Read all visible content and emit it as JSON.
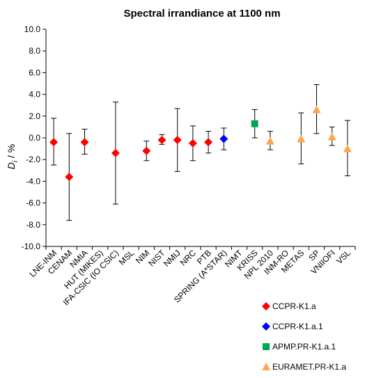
{
  "chart_data": {
    "type": "scatter",
    "title": "Spectral irrandiance at 1100 nm",
    "ylabel": "D_i / %",
    "ylabel_main": "D",
    "ylabel_sub": "i",
    "ylabel_rest": " / %",
    "xlabel": "",
    "ylim": [
      -10,
      10
    ],
    "yticks": [
      "10.0",
      "8.0",
      "6.0",
      "4.0",
      "2.0",
      "0.0",
      "-2.0",
      "-4.0",
      "-6.0",
      "-8.0",
      "-10.0"
    ],
    "ytick_values": [
      10,
      8,
      6,
      4,
      2,
      0,
      -2,
      -4,
      -6,
      -8,
      -10
    ],
    "grid": false,
    "legend_position": "bottom-right",
    "categories": [
      "LNE-INM",
      "CENAM",
      "NMIA",
      "HUT (MIKES)",
      "IFA-CSIC (IO CSIC)",
      "MSL",
      "NIM",
      "NIST",
      "NMIJ",
      "NRC",
      "PTB",
      "SPRING (A*STAR)",
      "NIMT",
      "KRISS",
      "NPL 2010",
      "INM-RO",
      "METAS",
      "SP",
      "VNIIOFI",
      "VSL"
    ],
    "series": [
      {
        "name": "CCPR-K1.a",
        "color": "#ff0000",
        "marker": "diamond",
        "points": [
          {
            "category": "LNE-INM",
            "y": -0.4,
            "err_low": -2.5,
            "err_high": 1.8
          },
          {
            "category": "CENAM",
            "y": -3.6,
            "err_low": -7.6,
            "err_high": 0.4
          },
          {
            "category": "NMIA",
            "y": -0.4,
            "err_low": -1.5,
            "err_high": 0.8
          },
          {
            "category": "IFA-CSIC (IO CSIC)",
            "y": -1.4,
            "err_low": -6.1,
            "err_high": 3.3
          },
          {
            "category": "NIM",
            "y": -1.2,
            "err_low": -2.1,
            "err_high": -0.3
          },
          {
            "category": "NIST",
            "y": -0.2,
            "err_low": -0.6,
            "err_high": 0.3
          },
          {
            "category": "NMIJ",
            "y": -0.2,
            "err_low": -3.1,
            "err_high": 2.7
          },
          {
            "category": "NRC",
            "y": -0.5,
            "err_low": -2.1,
            "err_high": 1.1
          },
          {
            "category": "PTB",
            "y": -0.4,
            "err_low": -1.4,
            "err_high": 0.6
          }
        ]
      },
      {
        "name": "CCPR-K1.a.1",
        "color": "#0000ff",
        "marker": "diamond",
        "points": [
          {
            "category": "SPRING (A*STAR)",
            "y": -0.1,
            "err_low": -1.1,
            "err_high": 0.9
          }
        ]
      },
      {
        "name": "APMP.PR-K1.a.1",
        "color": "#00a651",
        "marker": "square",
        "points": [
          {
            "category": "KRISS",
            "y": 1.3,
            "err_low": 0.0,
            "err_high": 2.6
          }
        ]
      },
      {
        "name": "EURAMET.PR-K1.a",
        "color": "#ffa64d",
        "marker": "triangle",
        "points": [
          {
            "category": "NPL 2010",
            "y": -0.3,
            "err_low": -1.1,
            "err_high": 0.6
          },
          {
            "category": "METAS",
            "y": -0.1,
            "err_low": -2.4,
            "err_high": 2.3
          },
          {
            "category": "SP",
            "y": 2.6,
            "err_low": 0.4,
            "err_high": 4.9
          },
          {
            "category": "VNIIOFI",
            "y": 0.1,
            "err_low": -0.7,
            "err_high": 1.0
          },
          {
            "category": "VSL",
            "y": -1.0,
            "err_low": -3.5,
            "err_high": 1.6
          }
        ]
      }
    ]
  }
}
